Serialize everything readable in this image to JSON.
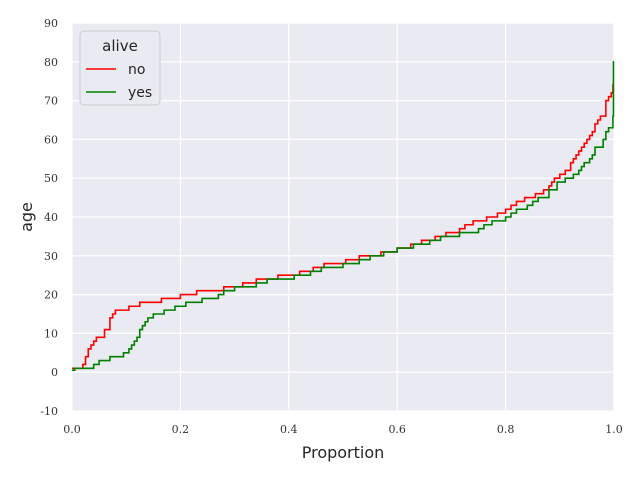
{
  "chart_data": {
    "type": "line",
    "step": true,
    "xlabel": "Proportion",
    "ylabel": "age",
    "xlim": [
      0,
      1
    ],
    "ylim": [
      -10,
      90
    ],
    "x_ticks": [
      "0.0",
      "0.2",
      "0.4",
      "0.6",
      "0.8",
      "1.0"
    ],
    "y_ticks": [
      "-10",
      "0",
      "10",
      "20",
      "30",
      "40",
      "50",
      "60",
      "70",
      "80",
      "90"
    ],
    "grid": true,
    "legend_title": "alive",
    "legend_position": "top-left",
    "series": [
      {
        "name": "no",
        "color": "#ff0000",
        "points": [
          [
            0.0,
            1
          ],
          [
            0.02,
            2
          ],
          [
            0.025,
            4
          ],
          [
            0.03,
            6
          ],
          [
            0.035,
            7
          ],
          [
            0.04,
            8
          ],
          [
            0.045,
            9
          ],
          [
            0.06,
            11
          ],
          [
            0.07,
            14
          ],
          [
            0.075,
            15
          ],
          [
            0.08,
            16
          ],
          [
            0.105,
            17
          ],
          [
            0.125,
            18
          ],
          [
            0.165,
            19
          ],
          [
            0.2,
            20
          ],
          [
            0.23,
            21
          ],
          [
            0.28,
            22
          ],
          [
            0.315,
            23
          ],
          [
            0.34,
            24
          ],
          [
            0.38,
            25
          ],
          [
            0.42,
            26
          ],
          [
            0.445,
            27
          ],
          [
            0.465,
            28
          ],
          [
            0.505,
            29
          ],
          [
            0.53,
            30
          ],
          [
            0.57,
            31
          ],
          [
            0.6,
            32
          ],
          [
            0.625,
            33
          ],
          [
            0.645,
            34
          ],
          [
            0.67,
            35
          ],
          [
            0.69,
            36
          ],
          [
            0.715,
            37
          ],
          [
            0.725,
            38
          ],
          [
            0.74,
            39
          ],
          [
            0.765,
            40
          ],
          [
            0.785,
            41
          ],
          [
            0.8,
            42
          ],
          [
            0.81,
            43
          ],
          [
            0.82,
            44
          ],
          [
            0.835,
            45
          ],
          [
            0.855,
            46
          ],
          [
            0.87,
            47
          ],
          [
            0.88,
            48
          ],
          [
            0.885,
            49
          ],
          [
            0.89,
            50
          ],
          [
            0.9,
            51
          ],
          [
            0.91,
            52
          ],
          [
            0.92,
            54
          ],
          [
            0.925,
            55
          ],
          [
            0.93,
            56
          ],
          [
            0.935,
            57
          ],
          [
            0.94,
            58
          ],
          [
            0.945,
            59
          ],
          [
            0.95,
            60
          ],
          [
            0.955,
            61
          ],
          [
            0.96,
            62
          ],
          [
            0.965,
            64
          ],
          [
            0.97,
            65
          ],
          [
            0.975,
            66
          ],
          [
            0.985,
            70
          ],
          [
            0.99,
            71
          ],
          [
            0.995,
            72
          ],
          [
            0.998,
            74
          ],
          [
            1.0,
            74
          ]
        ]
      },
      {
        "name": "yes",
        "color": "#008000",
        "points": [
          [
            0.0,
            0.5
          ],
          [
            0.005,
            1
          ],
          [
            0.04,
            2
          ],
          [
            0.05,
            3
          ],
          [
            0.07,
            4
          ],
          [
            0.095,
            5
          ],
          [
            0.105,
            6
          ],
          [
            0.11,
            7
          ],
          [
            0.115,
            8
          ],
          [
            0.12,
            9
          ],
          [
            0.125,
            11
          ],
          [
            0.13,
            12
          ],
          [
            0.135,
            13
          ],
          [
            0.14,
            14
          ],
          [
            0.15,
            15
          ],
          [
            0.17,
            16
          ],
          [
            0.19,
            17
          ],
          [
            0.21,
            18
          ],
          [
            0.24,
            19
          ],
          [
            0.27,
            20
          ],
          [
            0.28,
            21
          ],
          [
            0.3,
            22
          ],
          [
            0.34,
            23
          ],
          [
            0.36,
            24
          ],
          [
            0.41,
            25
          ],
          [
            0.44,
            26
          ],
          [
            0.46,
            27
          ],
          [
            0.5,
            28
          ],
          [
            0.53,
            29
          ],
          [
            0.55,
            30
          ],
          [
            0.575,
            31
          ],
          [
            0.6,
            32
          ],
          [
            0.63,
            33
          ],
          [
            0.66,
            34
          ],
          [
            0.68,
            35
          ],
          [
            0.715,
            36
          ],
          [
            0.75,
            37
          ],
          [
            0.76,
            38
          ],
          [
            0.775,
            39
          ],
          [
            0.8,
            40
          ],
          [
            0.81,
            41
          ],
          [
            0.82,
            42
          ],
          [
            0.84,
            43
          ],
          [
            0.85,
            44
          ],
          [
            0.86,
            45
          ],
          [
            0.88,
            47
          ],
          [
            0.895,
            49
          ],
          [
            0.91,
            50
          ],
          [
            0.925,
            51
          ],
          [
            0.935,
            52
          ],
          [
            0.94,
            53
          ],
          [
            0.945,
            54
          ],
          [
            0.955,
            55
          ],
          [
            0.96,
            56
          ],
          [
            0.965,
            58
          ],
          [
            0.98,
            60
          ],
          [
            0.985,
            62
          ],
          [
            0.99,
            63
          ],
          [
            0.998,
            66
          ],
          [
            0.999,
            80
          ],
          [
            1.0,
            80
          ]
        ]
      }
    ]
  }
}
